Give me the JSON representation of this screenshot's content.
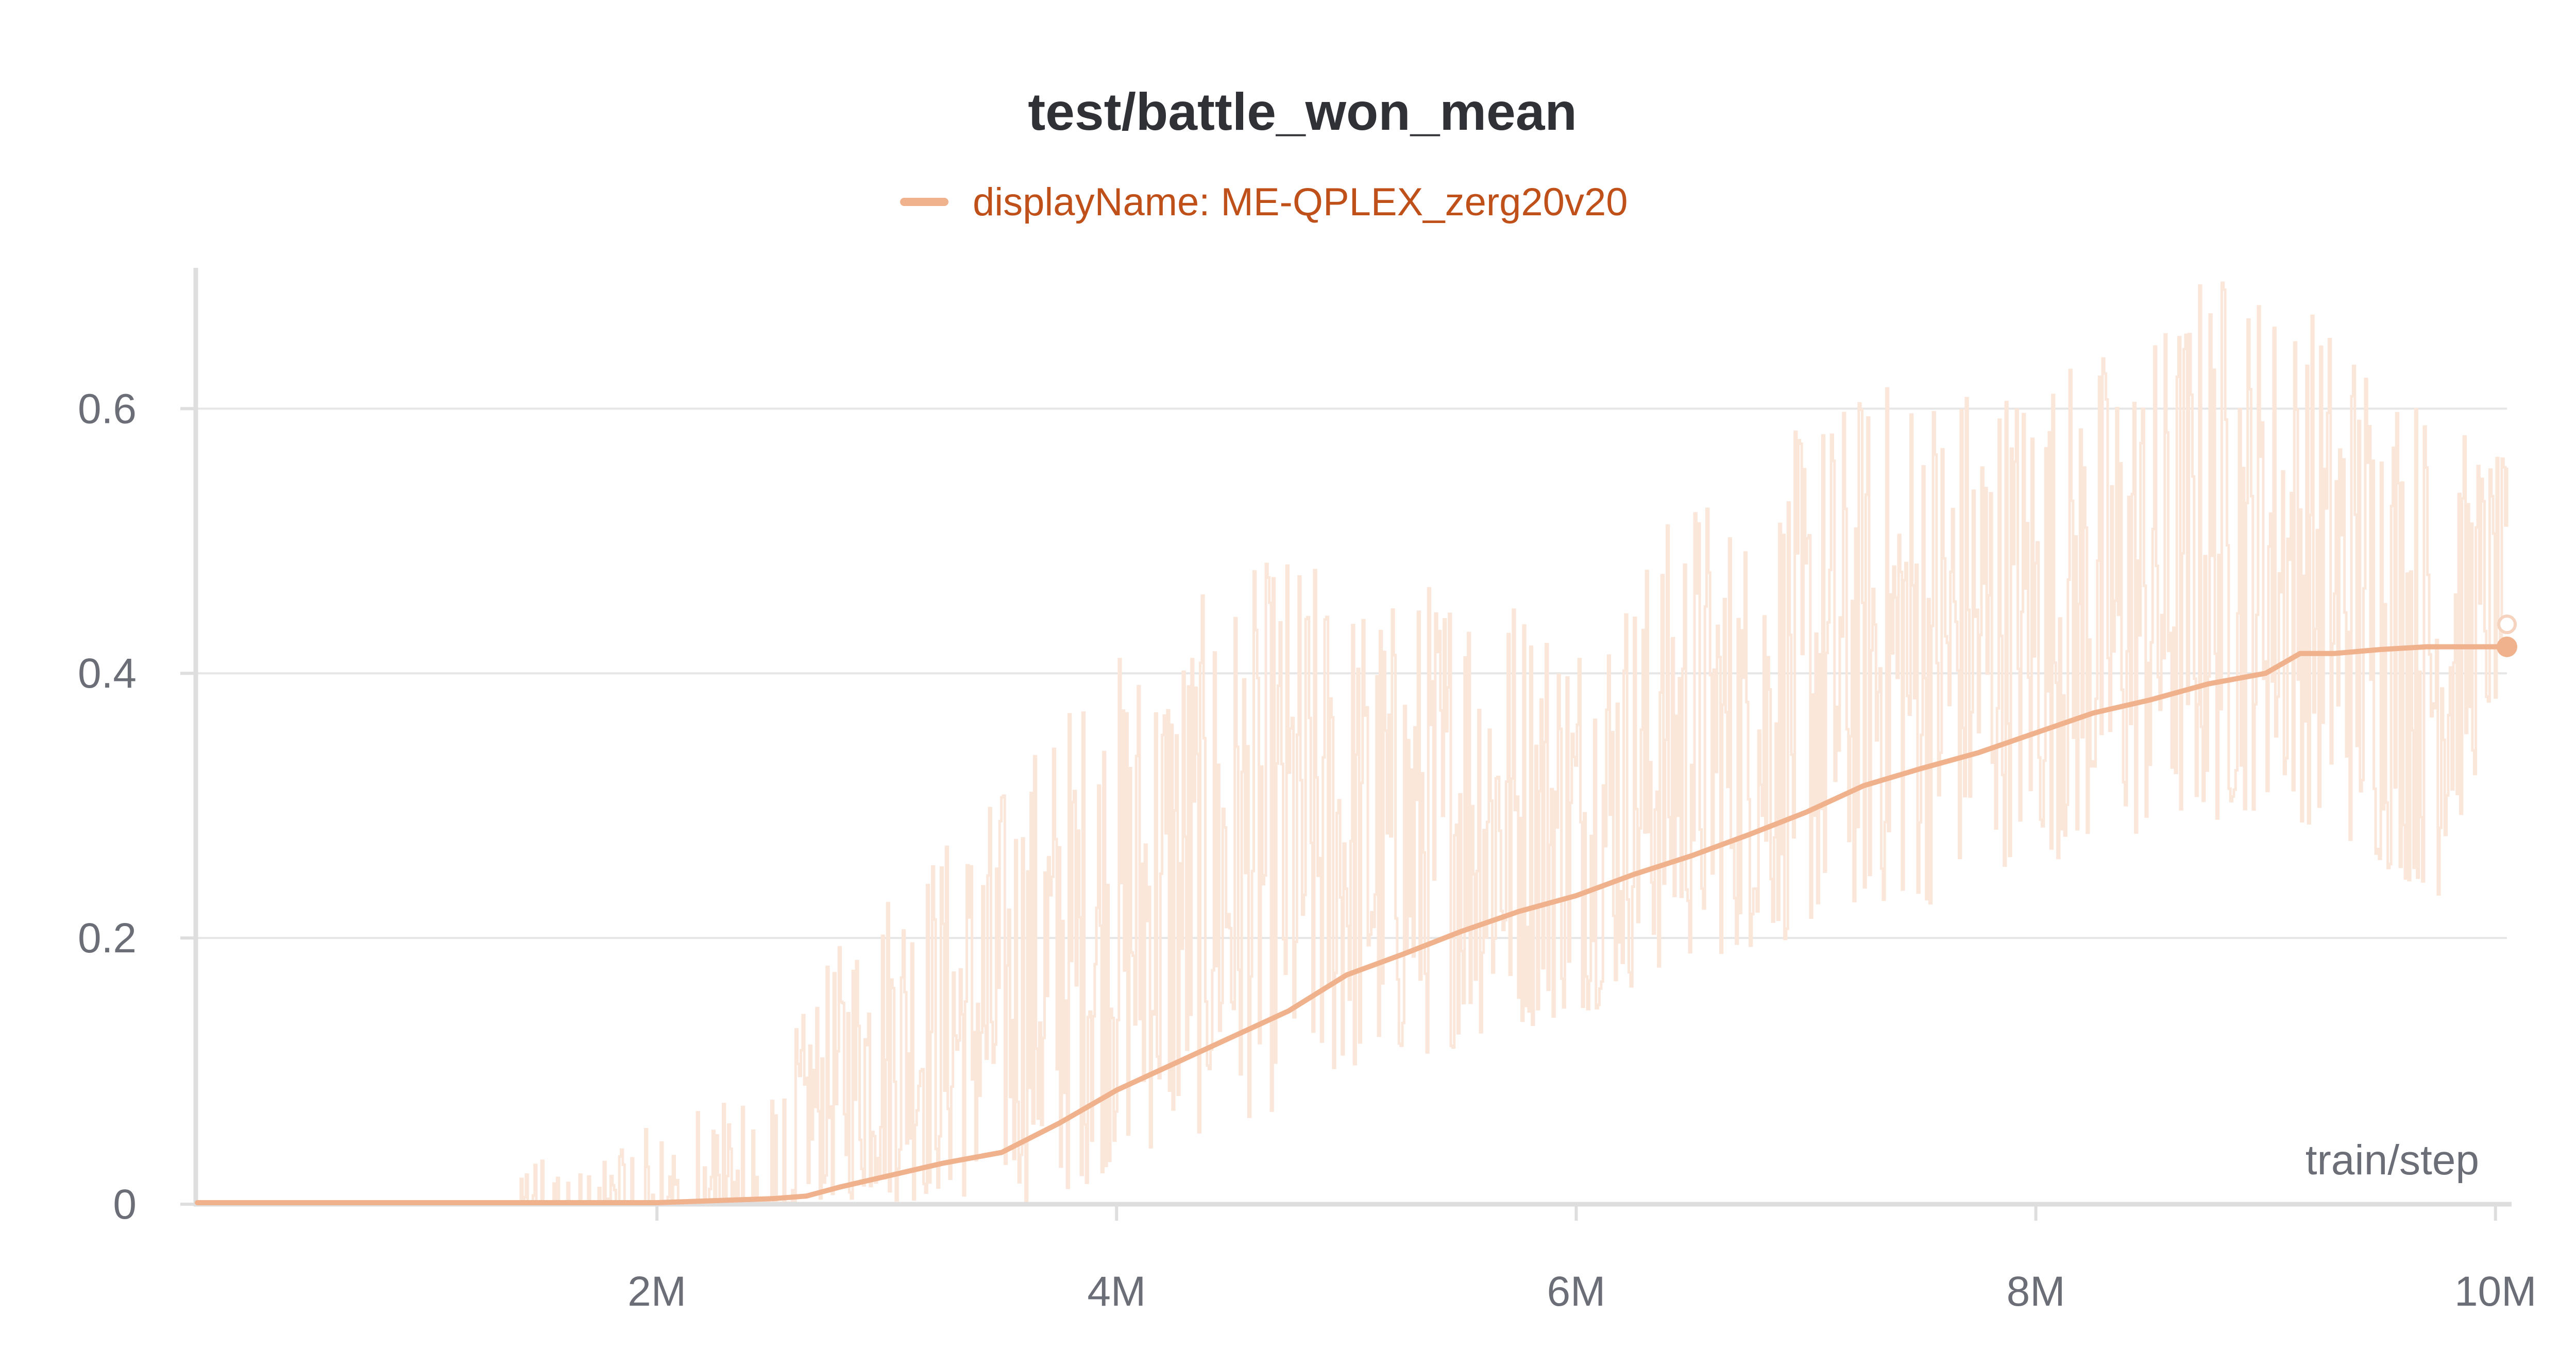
{
  "chart_data": {
    "type": "line",
    "title": "test/battle_won_mean",
    "xlabel": "train/step",
    "ylabel": "",
    "xlim": [
      0,
      10050000
    ],
    "ylim": [
      0,
      0.72
    ],
    "x_ticks": [
      2000000,
      4000000,
      6000000,
      8000000,
      10000000
    ],
    "x_tick_labels": [
      "2M",
      "4M",
      "6M",
      "8M",
      "10M"
    ],
    "y_ticks": [
      0,
      0.2,
      0.4,
      0.6
    ],
    "y_tick_labels": [
      "0",
      "0.2",
      "0.4",
      "0.6"
    ],
    "grid": true,
    "legend_position": "top-center",
    "colors": {
      "smoothed": "#f0b18d",
      "raw": "#fbe6da",
      "grid": "#e6e6e6",
      "axis": "#dedede"
    },
    "series": [
      {
        "name": "displayName: ME-QPLEX_zerg20v20",
        "smoothed": {
          "x": [
            0,
            1000000,
            2000000,
            2500000,
            2650000,
            2800000,
            3000000,
            3250000,
            3500000,
            3750000,
            4000000,
            4250000,
            4500000,
            4750000,
            5000000,
            5250000,
            5500000,
            5750000,
            6000000,
            6250000,
            6500000,
            6750000,
            7000000,
            7250000,
            7500000,
            7750000,
            8000000,
            8250000,
            8500000,
            8750000,
            9000000,
            9150000,
            9300000,
            9500000,
            9700000,
            9850000,
            10000000,
            10050000
          ],
          "y": [
            0,
            0,
            0,
            0.003,
            0.005,
            0.012,
            0.02,
            0.03,
            0.038,
            0.06,
            0.085,
            0.105,
            0.125,
            0.145,
            0.172,
            0.188,
            0.205,
            0.22,
            0.232,
            0.248,
            0.262,
            0.278,
            0.295,
            0.315,
            0.328,
            0.34,
            0.355,
            0.37,
            0.38,
            0.392,
            0.4,
            0.415,
            0.415,
            0.418,
            0.42,
            0.42,
            0.42,
            0.42
          ]
        },
        "raw_envelope": {
          "x": [
            1400000,
            2000000,
            2500000,
            2800000,
            3000000,
            3250000,
            3500000,
            3750000,
            4000000,
            4250000,
            4500000,
            4750000,
            5000000,
            5250000,
            5500000,
            5750000,
            6000000,
            6250000,
            6500000,
            6750000,
            7000000,
            7250000,
            7500000,
            7750000,
            8000000,
            8250000,
            8500000,
            8750000,
            9000000,
            9250000,
            9500000,
            9750000,
            10050000
          ],
          "low": [
            0,
            0,
            0,
            0,
            0,
            0,
            0,
            0,
            0.03,
            0.04,
            0.06,
            0.07,
            0.09,
            0.1,
            0.12,
            0.13,
            0.14,
            0.16,
            0.18,
            0.19,
            0.2,
            0.22,
            0.22,
            0.25,
            0.26,
            0.26,
            0.27,
            0.28,
            0.3,
            0.28,
            0.25,
            0.23,
            0.4
          ],
          "high": [
            0.03,
            0.06,
            0.1,
            0.2,
            0.25,
            0.28,
            0.32,
            0.38,
            0.42,
            0.45,
            0.47,
            0.5,
            0.47,
            0.46,
            0.5,
            0.47,
            0.45,
            0.48,
            0.55,
            0.52,
            0.6,
            0.62,
            0.64,
            0.63,
            0.64,
            0.65,
            0.66,
            0.72,
            0.7,
            0.68,
            0.66,
            0.6,
            0.56
          ]
        },
        "last_value": 0.42
      }
    ]
  }
}
